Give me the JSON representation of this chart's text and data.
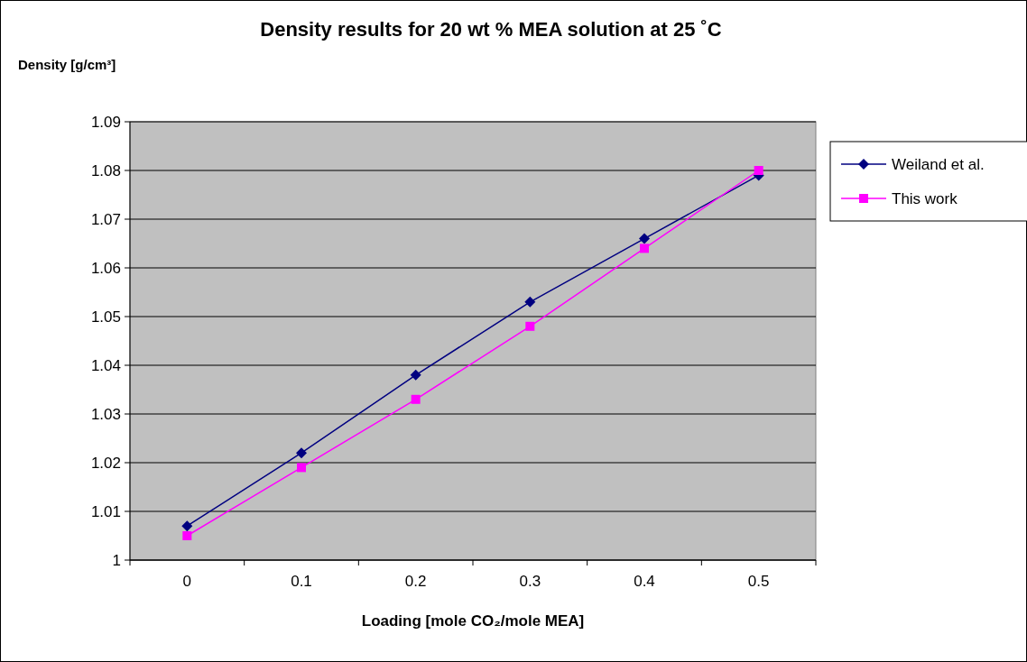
{
  "chart_data": {
    "type": "line",
    "title": "Density results for 20 wt % MEA solution at 25 ˚C",
    "xlabel": "Loading [mole CO₂/mole MEA]",
    "ylabel": "Density [g/cm³]",
    "categories": [
      "0",
      "0.1",
      "0.2",
      "0.3",
      "0.4",
      "0.5"
    ],
    "series": [
      {
        "name": "Weiland et al.",
        "color": "#000080",
        "marker": "diamond",
        "values": [
          1.007,
          1.022,
          1.038,
          1.053,
          1.066,
          1.079
        ]
      },
      {
        "name": "This work",
        "color": "#ff00ff",
        "marker": "square",
        "values": [
          1.005,
          1.019,
          1.033,
          1.048,
          1.064,
          1.08
        ]
      }
    ],
    "ylim": [
      1,
      1.09
    ],
    "yticks": [
      1,
      1.01,
      1.02,
      1.03,
      1.04,
      1.05,
      1.06,
      1.07,
      1.08,
      1.09
    ],
    "grid": "y",
    "legend": "right",
    "line_style": "solid"
  }
}
